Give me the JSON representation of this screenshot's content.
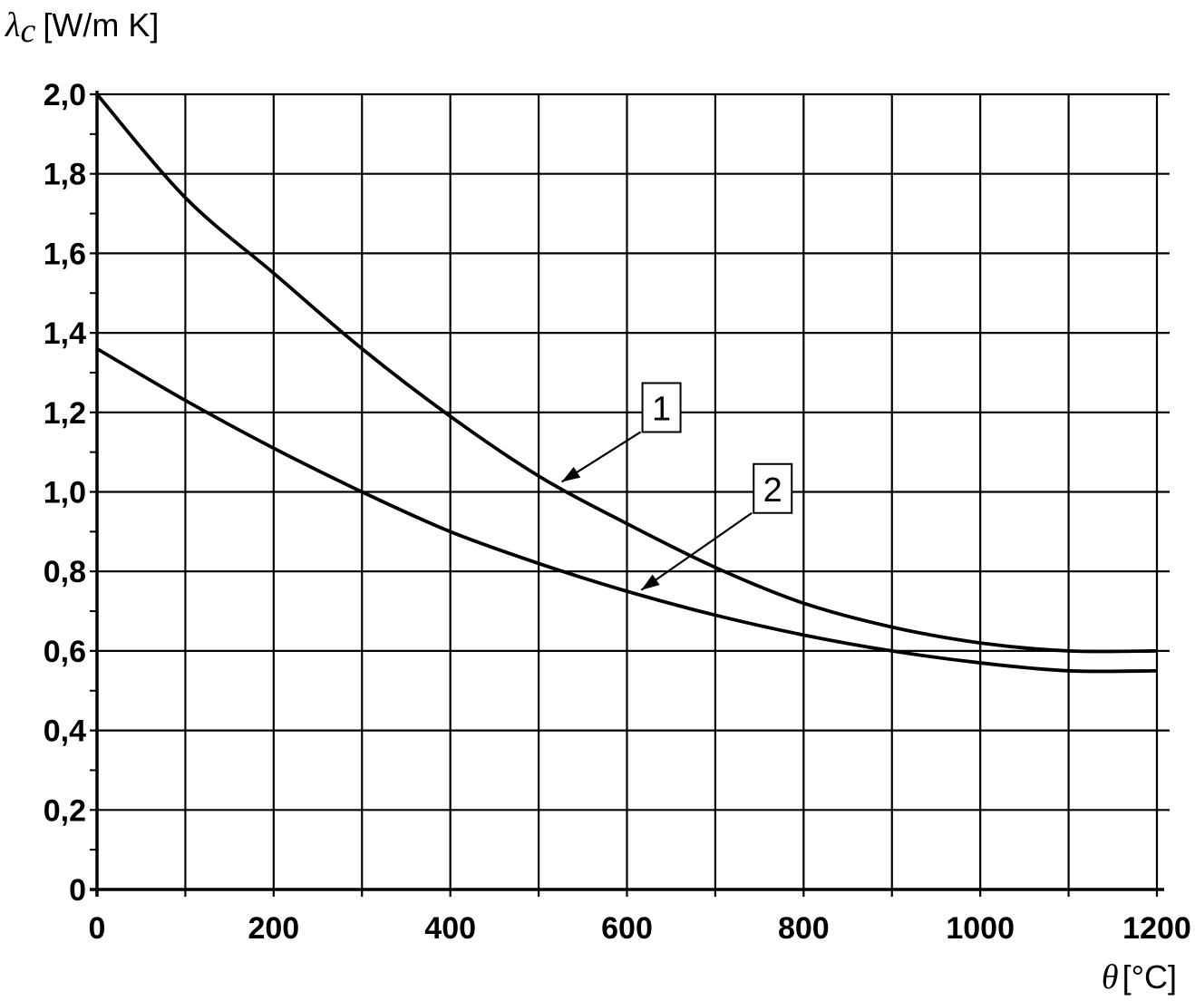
{
  "chart_data": {
    "type": "line",
    "title": "",
    "ylabel_symbol": "λ",
    "ylabel_subscript": "c",
    "ylabel_unit": "[W/m K]",
    "xlabel_symbol": "θ",
    "xlabel_unit": "[°C]",
    "xlim": [
      0,
      1200
    ],
    "ylim": [
      0,
      2.0
    ],
    "x_ticks": [
      0,
      200,
      400,
      600,
      800,
      1000,
      1200
    ],
    "x_tick_labels": [
      "0",
      "200",
      "400",
      "600",
      "800",
      "1000",
      "1200"
    ],
    "y_ticks": [
      0,
      0.2,
      0.4,
      0.6,
      0.8,
      1.0,
      1.2,
      1.4,
      1.6,
      1.8,
      2.0
    ],
    "y_tick_labels": [
      "0",
      "0,2",
      "0,4",
      "0,6",
      "0,8",
      "1,0",
      "1,2",
      "1,4",
      "1,6",
      "1,8",
      "2,0"
    ],
    "grid": true,
    "grid_x_step": 100,
    "grid_y_step": 0.2,
    "line_color": "#000000",
    "series": [
      {
        "name": "1",
        "x": [
          0,
          100,
          200,
          300,
          400,
          500,
          600,
          700,
          800,
          900,
          1000,
          1100,
          1200
        ],
        "values": [
          2.0,
          1.74,
          1.55,
          1.36,
          1.19,
          1.04,
          0.92,
          0.81,
          0.72,
          0.66,
          0.62,
          0.6,
          0.6
        ]
      },
      {
        "name": "2",
        "x": [
          0,
          100,
          200,
          300,
          400,
          500,
          600,
          700,
          800,
          900,
          1000,
          1100,
          1200
        ],
        "values": [
          1.36,
          1.23,
          1.11,
          1.0,
          0.9,
          0.82,
          0.75,
          0.69,
          0.64,
          0.6,
          0.57,
          0.55,
          0.55
        ]
      }
    ],
    "annotations": [
      {
        "label": "1",
        "series": "1",
        "points_to_x": 520
      },
      {
        "label": "2",
        "series": "2",
        "points_to_x": 610
      }
    ]
  }
}
